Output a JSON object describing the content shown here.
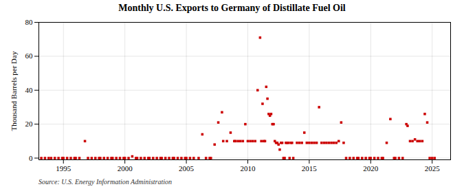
{
  "chart_data": {
    "type": "scatter",
    "title": "Monthly U.S. Exports to Germany of Distillate Fuel Oil",
    "ylabel": "Thousand Barrels per Day",
    "source": "Source: U.S. Energy Information Administration",
    "color": "#cc0000",
    "marker": "square",
    "grid": true,
    "xlim": [
      1993.0,
      2026.5
    ],
    "ylim": [
      -1,
      80
    ],
    "xticks": [
      1995,
      2000,
      2005,
      2010,
      2015,
      2020,
      2025
    ],
    "yticks": [
      0,
      20,
      40,
      60,
      80
    ],
    "x": [
      1996.75,
      1993.2,
      1993.5,
      1993.8,
      1994.0,
      1994.3,
      1994.6,
      1994.9,
      1995.0,
      1995.3,
      1995.6,
      1995.9,
      1996.0,
      1996.3,
      1997.0,
      1997.3,
      1997.6,
      1997.9,
      1998.0,
      1998.3,
      1998.6,
      1998.9,
      1999.0,
      1999.3,
      1999.6,
      1999.9,
      2000.0,
      2000.3,
      2000.6,
      2000.9,
      2001.0,
      2001.3,
      2001.6,
      2001.9,
      2002.0,
      2002.3,
      2002.6,
      2002.9,
      2003.0,
      2003.3,
      2003.6,
      2003.9,
      2004.0,
      2004.3,
      2004.6,
      2004.9,
      2005.0,
      2005.3,
      2005.6,
      2006.0,
      2006.3,
      2006.6,
      2006.9,
      2007.0,
      2007.3,
      2007.6,
      2007.9,
      2008.0,
      2008.3,
      2008.6,
      2008.9,
      2009.0,
      2009.2,
      2009.4,
      2009.6,
      2009.8,
      2010.0,
      2010.2,
      2010.4,
      2010.6,
      2010.8,
      2011.0,
      2011.1,
      2011.2,
      2011.3,
      2011.4,
      2011.5,
      2011.6,
      2011.7,
      2011.8,
      2011.9,
      2012.0,
      2012.1,
      2012.2,
      2012.3,
      2012.4,
      2012.5,
      2012.6,
      2012.7,
      2012.8,
      2012.9,
      2013.0,
      2013.1,
      2013.2,
      2013.3,
      2013.4,
      2013.5,
      2013.6,
      2013.7,
      2014.0,
      2014.2,
      2014.4,
      2014.6,
      2014.8,
      2015.0,
      2015.2,
      2015.4,
      2015.6,
      2015.8,
      2016.0,
      2016.2,
      2016.4,
      2016.6,
      2016.8,
      2017.0,
      2017.2,
      2017.4,
      2017.6,
      2017.8,
      2018.0,
      2018.3,
      2018.6,
      2018.9,
      2019.0,
      2019.3,
      2019.6,
      2019.9,
      2020.0,
      2020.3,
      2020.6,
      2020.9,
      2021.0,
      2021.3,
      2021.6,
      2021.9,
      2022.0,
      2022.3,
      2022.6,
      2022.9,
      2023.0,
      2023.2,
      2023.4,
      2023.6,
      2023.8,
      2024.0,
      2024.2,
      2024.4,
      2024.6,
      2024.8,
      2025.0,
      2025.2
    ],
    "values": [
      10,
      0,
      0,
      0,
      0,
      0,
      0,
      0,
      0,
      0,
      0,
      0,
      0,
      0,
      0,
      0,
      0,
      0,
      0,
      0,
      0,
      0,
      0,
      0,
      0,
      0,
      0,
      0,
      1,
      0,
      0,
      0,
      0,
      0,
      0,
      0,
      0,
      0,
      0,
      0,
      0,
      0,
      0,
      0,
      0,
      0,
      0,
      0,
      0,
      0,
      14,
      0,
      0,
      0,
      8,
      21,
      27,
      10,
      10,
      15,
      10,
      10,
      10,
      10,
      10,
      20,
      10,
      10,
      10,
      10,
      40,
      71,
      10,
      32,
      10,
      10,
      42,
      35,
      26,
      25,
      26,
      20,
      20,
      10,
      9,
      9,
      8,
      5,
      9,
      9,
      0,
      0,
      9,
      9,
      9,
      0,
      9,
      9,
      0,
      9,
      9,
      9,
      15,
      9,
      9,
      9,
      9,
      9,
      30,
      9,
      9,
      9,
      9,
      9,
      9,
      9,
      10,
      21,
      9,
      0,
      0,
      0,
      0,
      0,
      0,
      0,
      0,
      0,
      0,
      0,
      0,
      0,
      9,
      23,
      0,
      0,
      0,
      0,
      20,
      19,
      10,
      10,
      11,
      10,
      10,
      10,
      26,
      21,
      0,
      0,
      0
    ]
  }
}
